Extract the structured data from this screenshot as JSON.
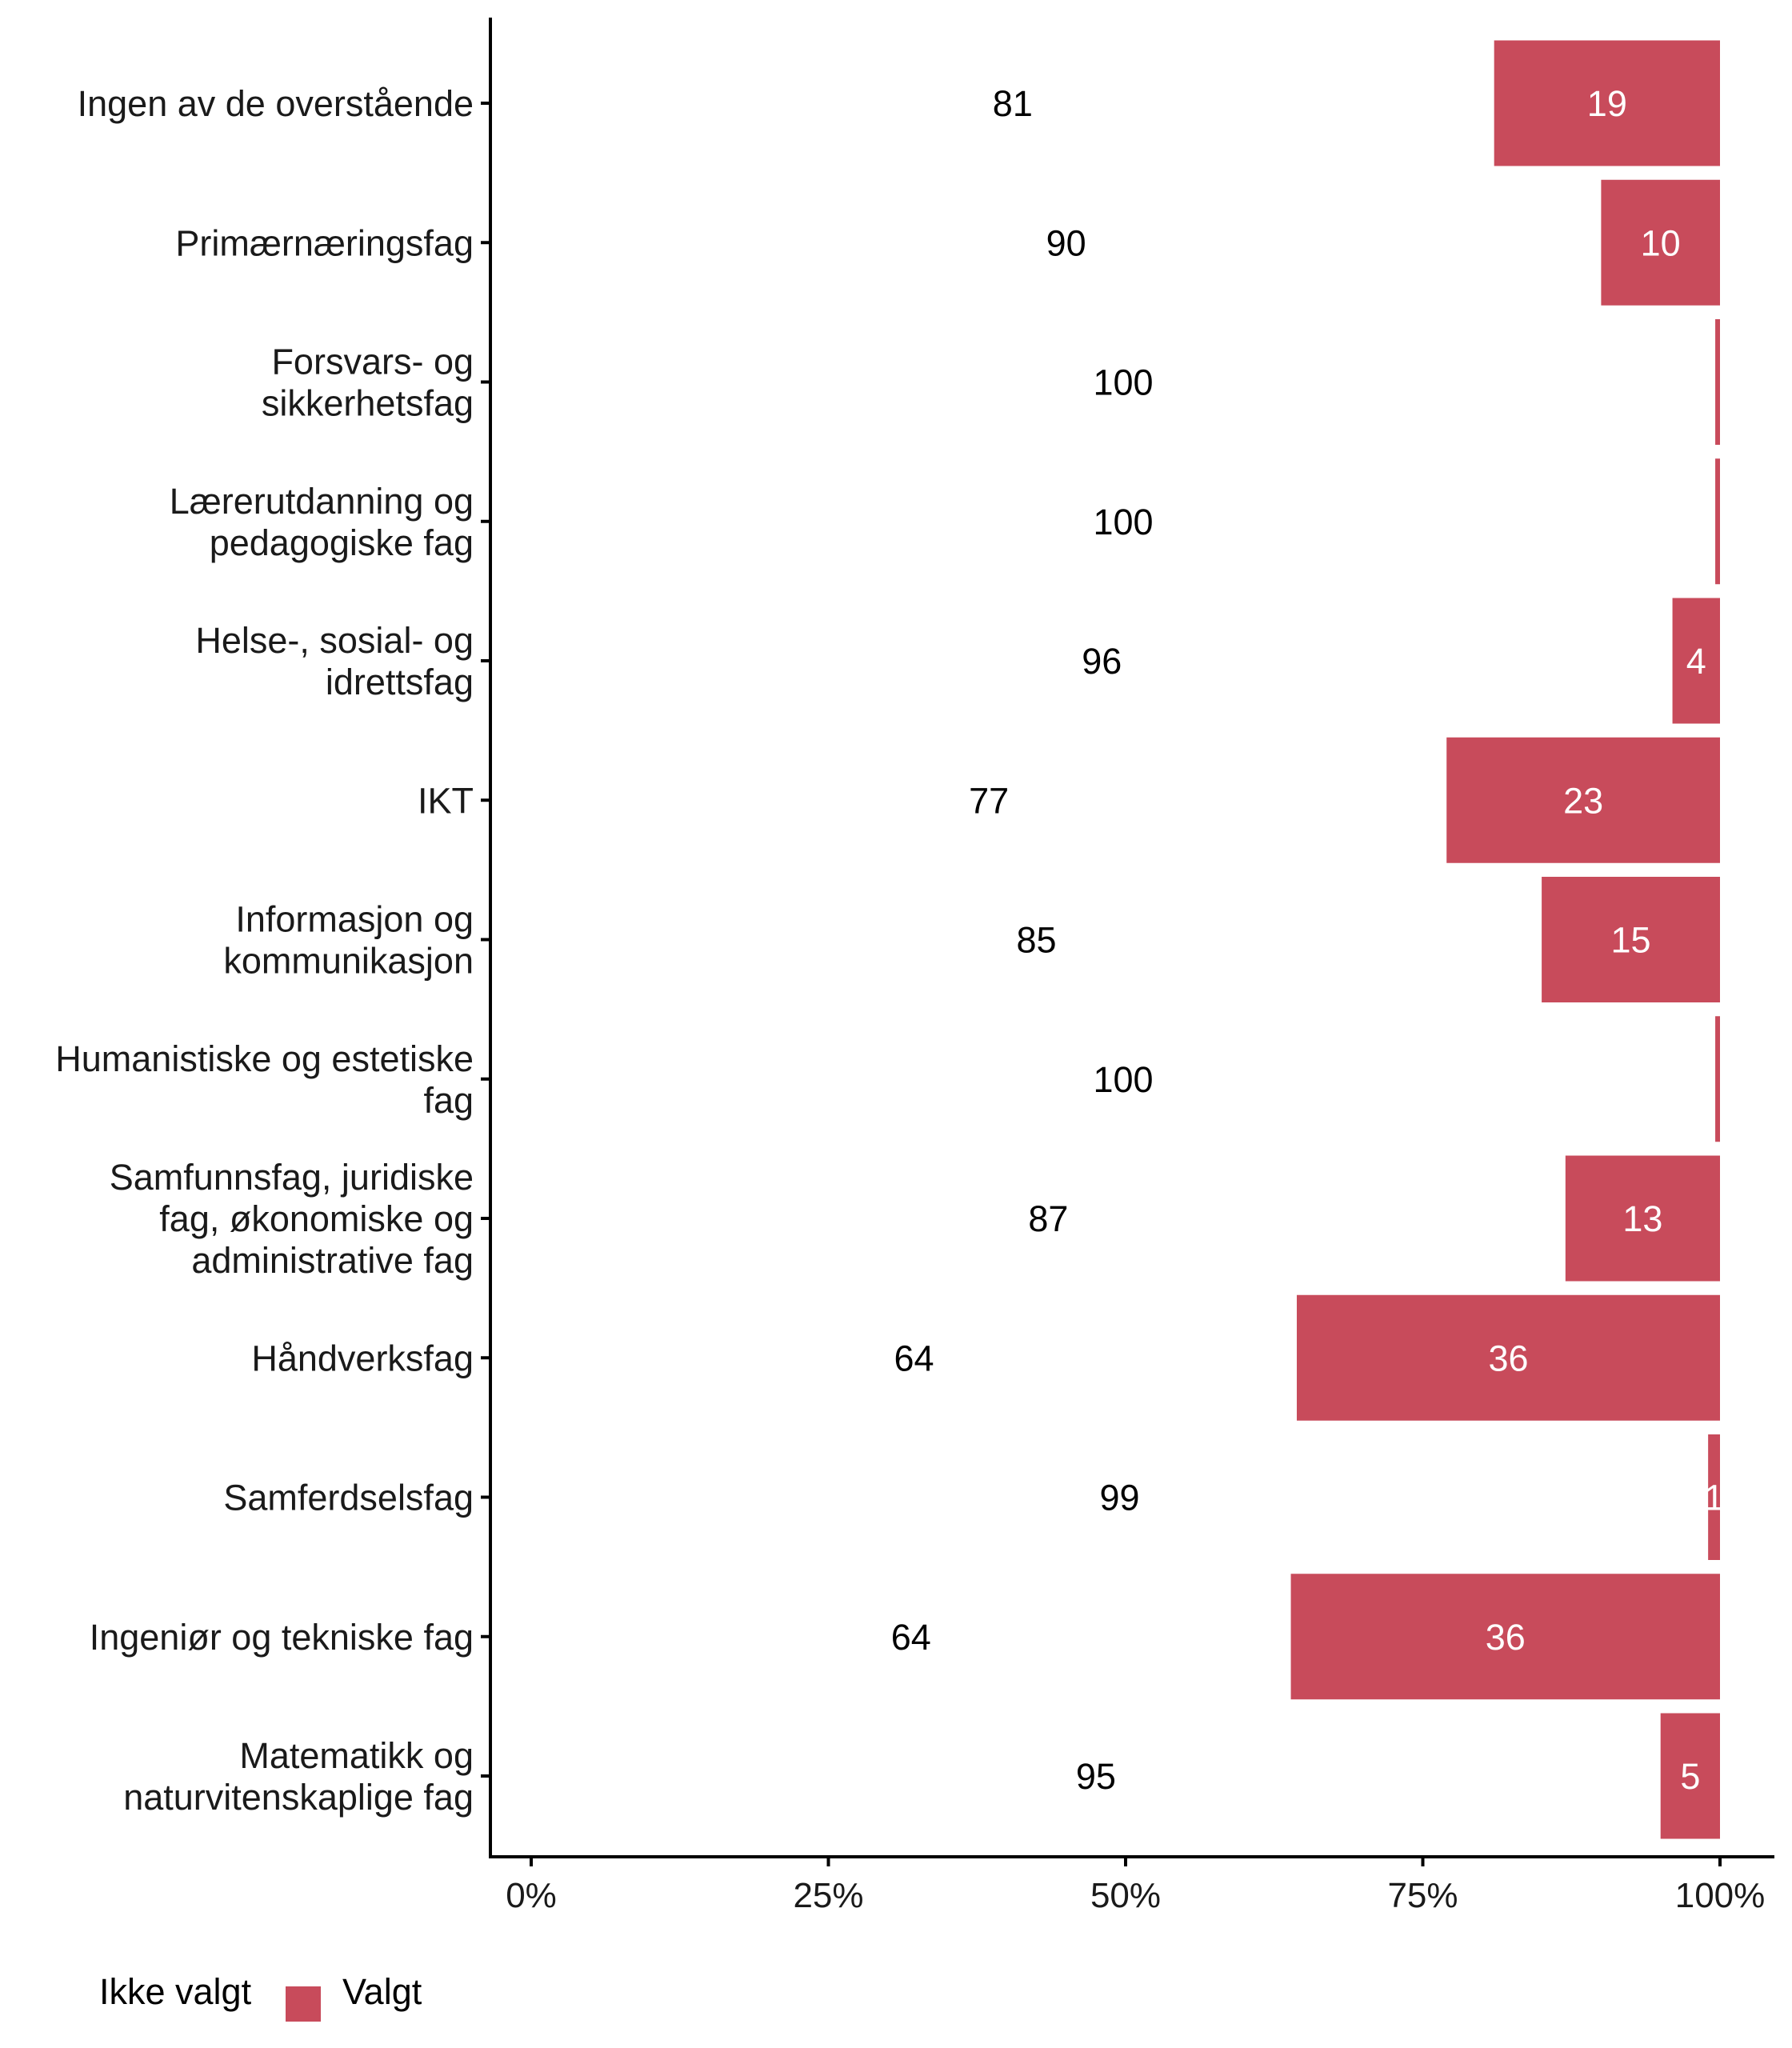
{
  "chart_data": {
    "type": "bar",
    "orientation": "horizontal",
    "stacked": true,
    "normalized": true,
    "title": "",
    "xlabel": "",
    "ylabel": "",
    "xlim": [
      0,
      100
    ],
    "x_ticks": [
      0,
      25,
      50,
      75,
      100
    ],
    "x_tick_labels": [
      "0%",
      "25%",
      "50%",
      "75%",
      "100%"
    ],
    "grid": false,
    "legend": {
      "placement": "bottom-left",
      "title": "Ikke valgt",
      "entries": [
        {
          "name": "Valgt",
          "color": "#C84B5B"
        }
      ]
    },
    "categories": [
      "Ingen av de overstående",
      "Primærnæringsfag",
      "Forsvars- og sikkerhetsfag",
      "Lærerutdanning og pedagogiske fag",
      "Helse-, sosial- og idrettsfag",
      "IKT",
      "Informasjon og kommunikasjon",
      "Humanistiske og estetiske fag",
      "Samfunnsfag, juridiske fag, økonomiske og administrative fag",
      "Håndverksfag",
      "Samferdselsfag",
      "Ingeniør og tekniske fag",
      "Matematikk og naturvitenskaplige fag"
    ],
    "category_label_lines": [
      [
        "Ingen av de overstående"
      ],
      [
        "Primærnæringsfag"
      ],
      [
        "Forsvars- og",
        "sikkerhetsfag"
      ],
      [
        "Lærerutdanning og",
        "pedagogiske fag"
      ],
      [
        "Helse-, sosial- og",
        "idrettsfag"
      ],
      [
        "IKT"
      ],
      [
        "Informasjon og",
        "kommunikasjon"
      ],
      [
        "Humanistiske og estetiske",
        "fag"
      ],
      [
        "Samfunnsfag, juridiske",
        "fag, økonomiske og",
        "administrative fag"
      ],
      [
        "Håndverksfag"
      ],
      [
        "Samferdselsfag"
      ],
      [
        "Ingeniør og tekniske fag"
      ],
      [
        "Matematikk og",
        "naturvitenskaplige fag"
      ]
    ],
    "series": [
      {
        "name": "Ikke valgt",
        "color": "#FFFFFF",
        "values": [
          81,
          90,
          99.6,
          99.6,
          96,
          77,
          85,
          99.6,
          87,
          64.4,
          99,
          63.9,
          95
        ],
        "labels": [
          "81",
          "90",
          "100",
          "100",
          "96",
          "77",
          "85",
          "100",
          "87",
          "64",
          "99",
          "64",
          "95"
        ]
      },
      {
        "name": "Valgt",
        "color": "#C84B5B",
        "values": [
          19,
          10,
          0.4,
          0.4,
          4,
          23,
          15,
          0.4,
          13,
          35.6,
          1,
          36.1,
          5
        ],
        "labels": [
          "19",
          "10",
          "",
          "",
          "4",
          "23",
          "15",
          "",
          "13",
          "36",
          "1",
          "36",
          "5"
        ]
      }
    ]
  }
}
